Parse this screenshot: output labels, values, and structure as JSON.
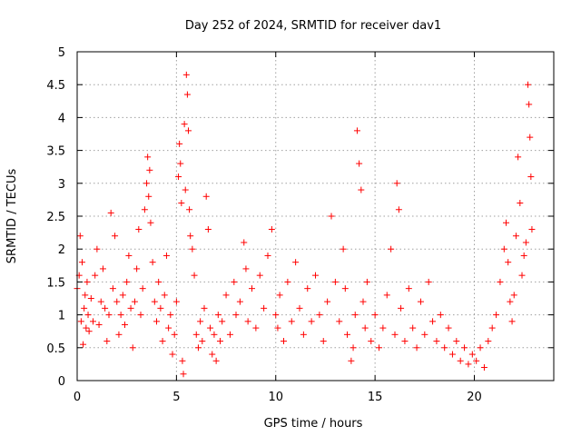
{
  "chart_data": {
    "type": "scatter",
    "title": "Day 252 of 2024, SRMTID for receiver dav1",
    "xlabel": "GPS time / hours",
    "ylabel": "SRMTID / TECUs",
    "xlim": [
      0,
      24
    ],
    "ylim": [
      0,
      5
    ],
    "xticks": [
      0,
      5,
      10,
      15,
      20
    ],
    "yticks": [
      0,
      0.5,
      1,
      1.5,
      2,
      2.5,
      3,
      3.5,
      4,
      4.5,
      5
    ],
    "xtick_labels": [
      "0",
      "5",
      "10",
      "15",
      "20"
    ],
    "ytick_labels": [
      "0",
      "0.5",
      "1",
      "1.5",
      "2",
      "2.5",
      "3",
      "3.5",
      "4",
      "4.5",
      "5"
    ],
    "grid": true,
    "marker": "+",
    "color": "#ff0000",
    "series": [
      {
        "name": "SRMTID",
        "points": [
          [
            0.0,
            1.4
          ],
          [
            0.1,
            1.6
          ],
          [
            0.15,
            2.2
          ],
          [
            0.2,
            0.9
          ],
          [
            0.25,
            1.8
          ],
          [
            0.3,
            0.55
          ],
          [
            0.35,
            1.1
          ],
          [
            0.4,
            1.3
          ],
          [
            0.45,
            0.8
          ],
          [
            0.5,
            1.5
          ],
          [
            0.55,
            1.0
          ],
          [
            0.6,
            0.75
          ],
          [
            0.7,
            1.25
          ],
          [
            0.8,
            0.9
          ],
          [
            0.9,
            1.6
          ],
          [
            1.0,
            2.0
          ],
          [
            1.1,
            0.85
          ],
          [
            1.2,
            1.2
          ],
          [
            1.3,
            1.7
          ],
          [
            1.4,
            1.1
          ],
          [
            1.5,
            0.6
          ],
          [
            1.6,
            1.0
          ],
          [
            1.7,
            2.55
          ],
          [
            1.8,
            1.4
          ],
          [
            1.9,
            2.2
          ],
          [
            2.0,
            1.2
          ],
          [
            2.1,
            0.7
          ],
          [
            2.2,
            1.0
          ],
          [
            2.3,
            1.3
          ],
          [
            2.4,
            0.85
          ],
          [
            2.5,
            1.5
          ],
          [
            2.6,
            1.9
          ],
          [
            2.7,
            1.1
          ],
          [
            2.8,
            0.5
          ],
          [
            2.9,
            1.2
          ],
          [
            3.0,
            1.7
          ],
          [
            3.1,
            2.3
          ],
          [
            3.2,
            1.0
          ],
          [
            3.3,
            1.4
          ],
          [
            3.4,
            2.6
          ],
          [
            3.5,
            3.0
          ],
          [
            3.55,
            3.4
          ],
          [
            3.6,
            2.8
          ],
          [
            3.65,
            3.2
          ],
          [
            3.7,
            2.4
          ],
          [
            3.8,
            1.8
          ],
          [
            3.9,
            1.2
          ],
          [
            4.0,
            0.9
          ],
          [
            4.1,
            1.5
          ],
          [
            4.2,
            1.1
          ],
          [
            4.3,
            0.6
          ],
          [
            4.4,
            1.3
          ],
          [
            4.5,
            1.9
          ],
          [
            4.6,
            0.8
          ],
          [
            4.7,
            1.0
          ],
          [
            4.8,
            0.4
          ],
          [
            4.9,
            0.7
          ],
          [
            5.0,
            1.2
          ],
          [
            5.1,
            3.1
          ],
          [
            5.15,
            3.6
          ],
          [
            5.2,
            3.3
          ],
          [
            5.25,
            2.7
          ],
          [
            5.3,
            0.3
          ],
          [
            5.35,
            0.1
          ],
          [
            5.4,
            3.9
          ],
          [
            5.45,
            2.9
          ],
          [
            5.5,
            4.65
          ],
          [
            5.55,
            4.35
          ],
          [
            5.6,
            3.8
          ],
          [
            5.65,
            2.6
          ],
          [
            5.7,
            2.2
          ],
          [
            5.8,
            2.0
          ],
          [
            5.9,
            1.6
          ],
          [
            6.0,
            0.7
          ],
          [
            6.1,
            0.5
          ],
          [
            6.2,
            0.9
          ],
          [
            6.3,
            0.6
          ],
          [
            6.4,
            1.1
          ],
          [
            6.5,
            2.8
          ],
          [
            6.6,
            2.3
          ],
          [
            6.7,
            0.8
          ],
          [
            6.8,
            0.4
          ],
          [
            6.9,
            0.7
          ],
          [
            7.0,
            0.3
          ],
          [
            7.1,
            1.0
          ],
          [
            7.2,
            0.6
          ],
          [
            7.3,
            0.9
          ],
          [
            7.5,
            1.3
          ],
          [
            7.7,
            0.7
          ],
          [
            7.9,
            1.5
          ],
          [
            8.0,
            1.0
          ],
          [
            8.2,
            1.2
          ],
          [
            8.4,
            2.1
          ],
          [
            8.5,
            1.7
          ],
          [
            8.6,
            0.9
          ],
          [
            8.8,
            1.4
          ],
          [
            9.0,
            0.8
          ],
          [
            9.2,
            1.6
          ],
          [
            9.4,
            1.1
          ],
          [
            9.6,
            1.9
          ],
          [
            9.8,
            2.3
          ],
          [
            10.0,
            1.0
          ],
          [
            10.1,
            0.8
          ],
          [
            10.2,
            1.3
          ],
          [
            10.4,
            0.6
          ],
          [
            10.6,
            1.5
          ],
          [
            10.8,
            0.9
          ],
          [
            11.0,
            1.8
          ],
          [
            11.2,
            1.1
          ],
          [
            11.4,
            0.7
          ],
          [
            11.6,
            1.4
          ],
          [
            11.8,
            0.9
          ],
          [
            12.0,
            1.6
          ],
          [
            12.2,
            1.0
          ],
          [
            12.4,
            0.6
          ],
          [
            12.6,
            1.2
          ],
          [
            12.8,
            2.5
          ],
          [
            13.0,
            1.5
          ],
          [
            13.2,
            0.9
          ],
          [
            13.4,
            2.0
          ],
          [
            13.5,
            1.4
          ],
          [
            13.6,
            0.7
          ],
          [
            13.8,
            0.3
          ],
          [
            13.9,
            0.5
          ],
          [
            14.0,
            1.0
          ],
          [
            14.1,
            3.8
          ],
          [
            14.2,
            3.3
          ],
          [
            14.3,
            2.9
          ],
          [
            14.4,
            1.2
          ],
          [
            14.5,
            0.8
          ],
          [
            14.6,
            1.5
          ],
          [
            14.8,
            0.6
          ],
          [
            15.0,
            1.0
          ],
          [
            15.2,
            0.5
          ],
          [
            15.4,
            0.8
          ],
          [
            15.6,
            1.3
          ],
          [
            15.8,
            2.0
          ],
          [
            16.0,
            0.7
          ],
          [
            16.1,
            3.0
          ],
          [
            16.2,
            2.6
          ],
          [
            16.3,
            1.1
          ],
          [
            16.5,
            0.6
          ],
          [
            16.7,
            1.4
          ],
          [
            16.9,
            0.8
          ],
          [
            17.1,
            0.5
          ],
          [
            17.3,
            1.2
          ],
          [
            17.5,
            0.7
          ],
          [
            17.7,
            1.5
          ],
          [
            17.9,
            0.9
          ],
          [
            18.1,
            0.6
          ],
          [
            18.3,
            1.0
          ],
          [
            18.5,
            0.5
          ],
          [
            18.7,
            0.8
          ],
          [
            18.9,
            0.4
          ],
          [
            19.1,
            0.6
          ],
          [
            19.3,
            0.3
          ],
          [
            19.5,
            0.5
          ],
          [
            19.7,
            0.25
          ],
          [
            19.9,
            0.4
          ],
          [
            20.1,
            0.3
          ],
          [
            20.3,
            0.5
          ],
          [
            20.5,
            0.2
          ],
          [
            20.7,
            0.6
          ],
          [
            20.9,
            0.8
          ],
          [
            21.1,
            1.0
          ],
          [
            21.3,
            1.5
          ],
          [
            21.5,
            2.0
          ],
          [
            21.6,
            2.4
          ],
          [
            21.7,
            1.8
          ],
          [
            21.8,
            1.2
          ],
          [
            21.9,
            0.9
          ],
          [
            22.0,
            1.3
          ],
          [
            22.1,
            2.2
          ],
          [
            22.2,
            3.4
          ],
          [
            22.3,
            2.7
          ],
          [
            22.4,
            1.6
          ],
          [
            22.5,
            1.9
          ],
          [
            22.6,
            2.1
          ],
          [
            22.7,
            4.5
          ],
          [
            22.75,
            4.2
          ],
          [
            22.8,
            3.7
          ],
          [
            22.85,
            3.1
          ],
          [
            22.9,
            2.3
          ]
        ]
      }
    ]
  }
}
